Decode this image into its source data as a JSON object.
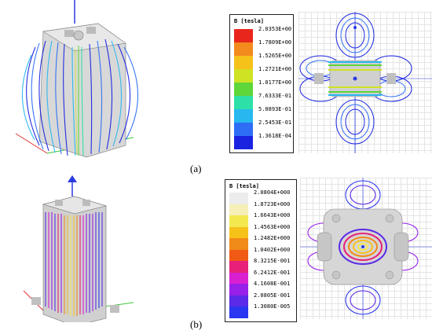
{
  "figure_a": {
    "caption": "(a)",
    "legend": {
      "title": "B [tesla]",
      "values": [
        "2.0353E+00",
        "1.7809E+00",
        "1.5265E+00",
        "1.2721E+00",
        "1.0177E+00",
        "7.6333E-01",
        "5.0893E-01",
        "2.5453E-01",
        "1.3618E-04"
      ],
      "colors": [
        "#e8261b",
        "#f28a1e",
        "#f6c21a",
        "#cfe224",
        "#5fd63a",
        "#2ee0a8",
        "#28b8f0",
        "#2e6ef6",
        "#1a24e0"
      ]
    }
  },
  "figure_b": {
    "caption": "(b)",
    "legend": {
      "title": "B [tesla]",
      "values": [
        "2.0804E+000",
        "1.8723E+000",
        "1.6643E+000",
        "1.4563E+000",
        "1.2482E+000",
        "1.0402E+000",
        "8.3215E-001",
        "6.2412E-001",
        "4.1608E-001",
        "2.0805E-001",
        "1.3080E-005"
      ],
      "colors": [
        "#ececec",
        "#f6efb8",
        "#f3e850",
        "#f6c21a",
        "#f08a18",
        "#f05a14",
        "#e8207a",
        "#d820d0",
        "#9820e8",
        "#5a2ae8",
        "#2a36f0"
      ]
    }
  }
}
